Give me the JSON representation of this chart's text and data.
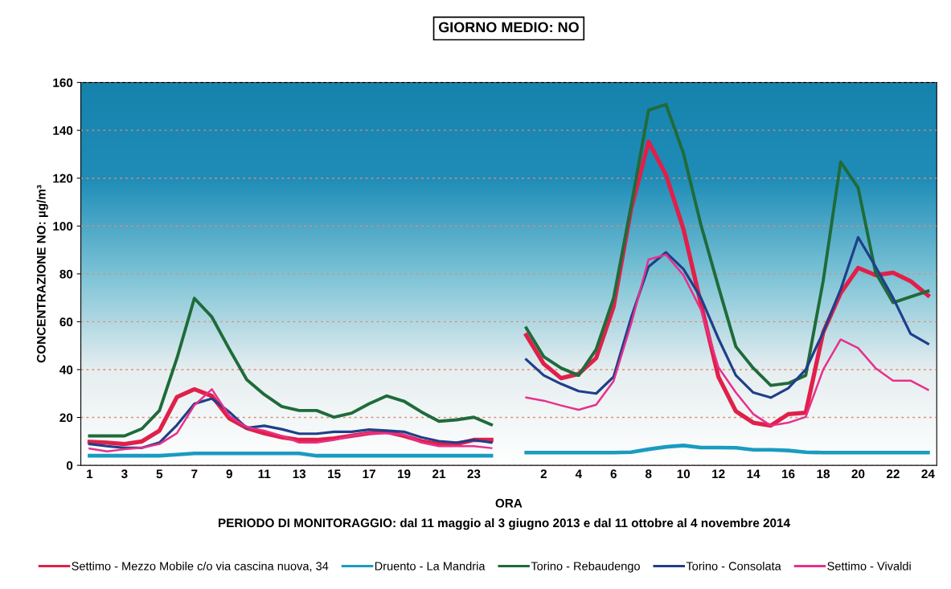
{
  "chart_data": {
    "type": "line",
    "title": "GIORNO MEDIO: NO",
    "xlabel": "ORA",
    "ylabel": "CONCENTRAZIONE NO: µg/m³",
    "annotations": [
      "PERIODO DI MONITORAGGIO: dal 11 maggio al 3 giugno 2013 e dal 11 ottobre al 4 novembre 2014"
    ],
    "categories": [
      "1",
      null,
      "3",
      null,
      "5",
      null,
      "7",
      null,
      "9",
      null,
      "11",
      null,
      "13",
      null,
      "15",
      null,
      "17",
      null,
      "19",
      null,
      "21",
      null,
      "23",
      null,
      null,
      null,
      "2",
      null,
      "4",
      null,
      "6",
      null,
      "8",
      null,
      "10",
      null,
      "12",
      null,
      "14",
      null,
      "16",
      null,
      "18",
      null,
      "20",
      null,
      "22",
      null,
      "24"
    ],
    "ylim": [
      0,
      160
    ],
    "yticks": [
      0,
      20,
      40,
      60,
      80,
      100,
      120,
      140,
      160
    ],
    "grid": "y",
    "legend": "bottom",
    "marker": "none",
    "line_style": "solid",
    "series": [
      {
        "name": "Settimo - Mezzo Mobile c/o via cascina nuova, 34",
        "color": "#e0204a",
        "values": [
          9.8,
          9.5,
          8.9,
          10,
          14.5,
          28.5,
          31.8,
          29,
          19.6,
          15.6,
          13.4,
          11.7,
          10.6,
          10.6,
          11.2,
          12.3,
          13.4,
          14,
          12.3,
          10.1,
          8.9,
          8.9,
          10.6,
          10.6,
          null,
          54.4,
          42.4,
          36.4,
          38.2,
          44.8,
          66.3,
          107,
          135.2,
          121.4,
          98.7,
          67.5,
          37,
          22.6,
          17.8,
          16.6,
          21.4,
          22,
          55.6,
          72,
          82.5,
          79.5,
          80.5,
          77,
          71
        ]
      },
      {
        "name": "Druento - La Mandria",
        "color": "#1a9bc0",
        "values": [
          4,
          4,
          4,
          4,
          4,
          4.5,
          5,
          5,
          5,
          5,
          5,
          5,
          5,
          4,
          4,
          4,
          4,
          4,
          4,
          4,
          4,
          4,
          4,
          4,
          null,
          5.3,
          5.3,
          5.3,
          5.3,
          5.3,
          5.3,
          5.5,
          6.7,
          7.7,
          8.3,
          7.4,
          7.4,
          7.3,
          6.5,
          6.5,
          6.2,
          5.5,
          5.3,
          5.3,
          5.3,
          5.3,
          5.3,
          5.3,
          5.3
        ]
      },
      {
        "name": "Torino - Rebaudengo",
        "color": "#1f6b3a",
        "values": [
          12.3,
          12.3,
          12.3,
          15.3,
          22.9,
          44.7,
          69.8,
          62,
          48.6,
          35.8,
          29.6,
          24.6,
          22.9,
          22.9,
          20.1,
          21.8,
          25.7,
          29,
          26.8,
          22.3,
          18.4,
          19,
          20.1,
          17,
          null,
          57.4,
          45.4,
          40.6,
          37.6,
          48.4,
          69.9,
          108.3,
          148.4,
          150.8,
          130.4,
          100.5,
          74.7,
          49.6,
          40.6,
          33.4,
          34.3,
          37.6,
          77.1,
          126.8,
          116,
          80.5,
          68,
          70.4,
          72.8
        ]
      },
      {
        "name": "Torino - Consolata",
        "color": "#1f3f8a",
        "values": [
          8.9,
          8,
          7.3,
          7.3,
          9.5,
          16.8,
          25.7,
          27.9,
          22.3,
          15.6,
          16.5,
          15.1,
          13.2,
          13.2,
          14,
          14,
          14.9,
          14.5,
          14,
          11.7,
          10.1,
          9.5,
          10.6,
          9.5,
          null,
          44.2,
          37.6,
          34,
          31,
          30,
          37,
          61.6,
          83,
          89,
          82,
          70,
          53,
          37.6,
          30.4,
          28.3,
          32.2,
          40,
          55.6,
          73.5,
          95.3,
          83,
          70,
          55,
          50.8
        ]
      },
      {
        "name": "Settimo - Vivaldi",
        "color": "#e8308a",
        "values": [
          7,
          5.8,
          6.7,
          7.3,
          8.9,
          13.4,
          25.1,
          31.8,
          20.7,
          15.9,
          14.5,
          12.3,
          9.5,
          9.5,
          10.6,
          12.3,
          13.4,
          13.4,
          12.8,
          9.5,
          8,
          8,
          8,
          7.2,
          null,
          28.3,
          27,
          25,
          23.2,
          25.3,
          35.2,
          59,
          86,
          88,
          79.5,
          65,
          41,
          30.4,
          21.4,
          16.6,
          17.8,
          20.2,
          40,
          52.6,
          49,
          40.6,
          35.4,
          35.4,
          31.6
        ]
      }
    ]
  }
}
